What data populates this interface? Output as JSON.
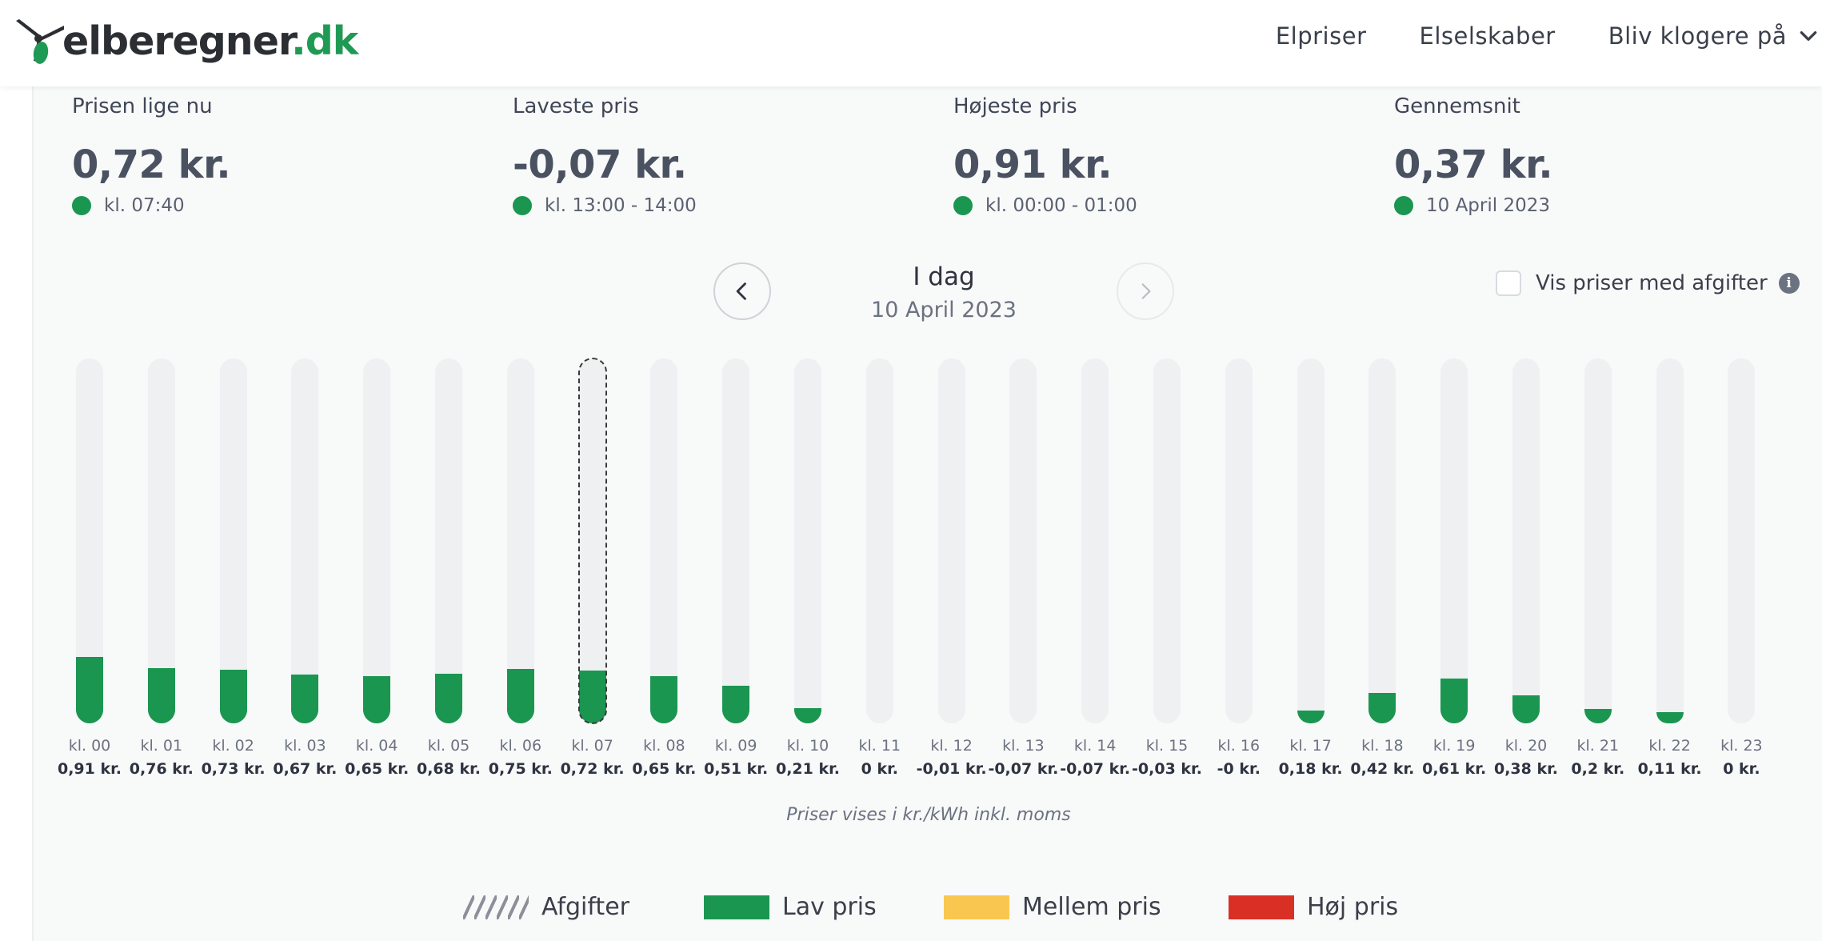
{
  "header": {
    "logo_text": "elberegner",
    "logo_tld": ".dk",
    "nav": [
      {
        "label": "Elpriser"
      },
      {
        "label": "Elselskaber"
      },
      {
        "label": "Bliv klogere på"
      }
    ]
  },
  "stats": [
    {
      "label": "Prisen lige nu",
      "value": "0,72 kr.",
      "sub": "kl. 07:40"
    },
    {
      "label": "Laveste pris",
      "value": "-0,07 kr.",
      "sub": "kl. 13:00 - 14:00"
    },
    {
      "label": "Højeste pris",
      "value": "0,91 kr.",
      "sub": "kl. 00:00 - 01:00"
    },
    {
      "label": "Gennemsnit",
      "value": "0,37 kr.",
      "sub": "10 April 2023"
    }
  ],
  "date_nav": {
    "title": "I dag",
    "date": "10 April 2023"
  },
  "toggle": {
    "label": "Vis priser med afgifter",
    "checked": false
  },
  "chart_data": {
    "type": "bar",
    "categories": [
      "kl. 00",
      "kl. 01",
      "kl. 02",
      "kl. 03",
      "kl. 04",
      "kl. 05",
      "kl. 06",
      "kl. 07",
      "kl. 08",
      "kl. 09",
      "kl. 10",
      "kl. 11",
      "kl. 12",
      "kl. 13",
      "kl. 14",
      "kl. 15",
      "kl. 16",
      "kl. 17",
      "kl. 18",
      "kl. 19",
      "kl. 20",
      "kl. 21",
      "kl. 22",
      "kl. 23"
    ],
    "values": [
      0.91,
      0.76,
      0.73,
      0.67,
      0.65,
      0.68,
      0.75,
      0.72,
      0.65,
      0.51,
      0.21,
      0,
      -0.01,
      -0.07,
      -0.07,
      -0.03,
      -0.0,
      0.18,
      0.42,
      0.61,
      0.38,
      0.2,
      0.11,
      0
    ],
    "value_labels": [
      "0,91 kr.",
      "0,76 kr.",
      "0,73 kr.",
      "0,67 kr.",
      "0,65 kr.",
      "0,68 kr.",
      "0,75 kr.",
      "0,72 kr.",
      "0,65 kr.",
      "0,51 kr.",
      "0,21 kr.",
      "0 kr.",
      "-0,01 kr.",
      "-0,07 kr.",
      "-0,07 kr.",
      "-0,03 kr.",
      "-0 kr.",
      "0,18 kr.",
      "0,42 kr.",
      "0,61 kr.",
      "0,38 kr.",
      "0,2 kr.",
      "0,11 kr.",
      "0 kr."
    ],
    "current_index": 7,
    "ylim": [
      0,
      5
    ],
    "bar_color": "#1a9650",
    "track_color": "#eff0f2",
    "note": "Priser vises i kr./kWh inkl. moms"
  },
  "legend": [
    {
      "label": "Afgifter",
      "swatch": "hatched"
    },
    {
      "label": "Lav pris",
      "color": "#1a9650"
    },
    {
      "label": "Mellem pris",
      "color": "#f9c74f"
    },
    {
      "label": "Høj pris",
      "color": "#d93025"
    }
  ]
}
